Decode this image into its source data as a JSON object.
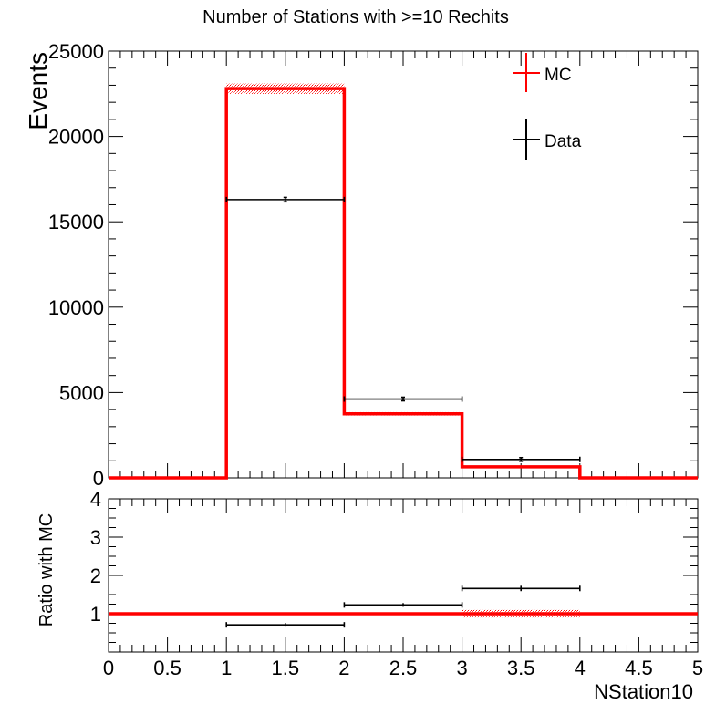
{
  "chart_data": [
    {
      "type": "histogram",
      "title": "Number of Stations with >=10 Rechits",
      "ylabel": "Events",
      "xlim": [
        0,
        5
      ],
      "ylim": [
        0,
        25000
      ],
      "y_ticks": [
        "0",
        "5000",
        "10000",
        "15000",
        "20000",
        "25000"
      ],
      "y_tick_values": [
        0,
        5000,
        10000,
        15000,
        20000,
        25000
      ],
      "grid": false,
      "legend_position": "top-right",
      "series": [
        {
          "name": "MC",
          "color": "#ff0000",
          "style": "step",
          "bins": [
            [
              0,
              1
            ],
            [
              1,
              2
            ],
            [
              2,
              3
            ],
            [
              3,
              4
            ],
            [
              4,
              5
            ]
          ],
          "values": [
            0,
            22800,
            3750,
            650,
            0
          ],
          "uncertainty": [
            0,
            300,
            100,
            50,
            0
          ]
        },
        {
          "name": "Data",
          "color": "#000000",
          "style": "points",
          "x": [
            1.5,
            2.5,
            3.5
          ],
          "xerr": [
            0.5,
            0.5,
            0.5
          ],
          "values": [
            16300,
            4620,
            1080
          ],
          "yerr": [
            128,
            68,
            33
          ]
        }
      ]
    },
    {
      "type": "ratio",
      "xlabel": "NStation10",
      "ylabel": "Ratio with MC",
      "xlim": [
        0,
        5
      ],
      "ylim": [
        0,
        4
      ],
      "x_ticks": [
        "0",
        "0.5",
        "1",
        "1.5",
        "2",
        "2.5",
        "3",
        "3.5",
        "4",
        "4.5",
        "5"
      ],
      "x_tick_values": [
        0,
        0.5,
        1,
        1.5,
        2,
        2.5,
        3,
        3.5,
        4,
        4.5,
        5
      ],
      "y_ticks": [
        "1",
        "2",
        "3",
        "4"
      ],
      "y_tick_values": [
        1,
        2,
        3,
        4
      ],
      "reference_line": 1,
      "mc_band": [
        {
          "x0": 1,
          "x1": 2,
          "low": 0.985,
          "high": 1.015
        },
        {
          "x0": 2,
          "x1": 3,
          "low": 0.97,
          "high": 1.03
        },
        {
          "x0": 3,
          "x1": 4,
          "low": 0.9,
          "high": 1.1
        }
      ],
      "points": {
        "x": [
          1.5,
          2.5,
          3.5
        ],
        "xerr": [
          0.5,
          0.5,
          0.5
        ],
        "values": [
          0.71,
          1.23,
          1.66
        ],
        "yerr": [
          0.01,
          0.02,
          0.07
        ]
      }
    }
  ]
}
